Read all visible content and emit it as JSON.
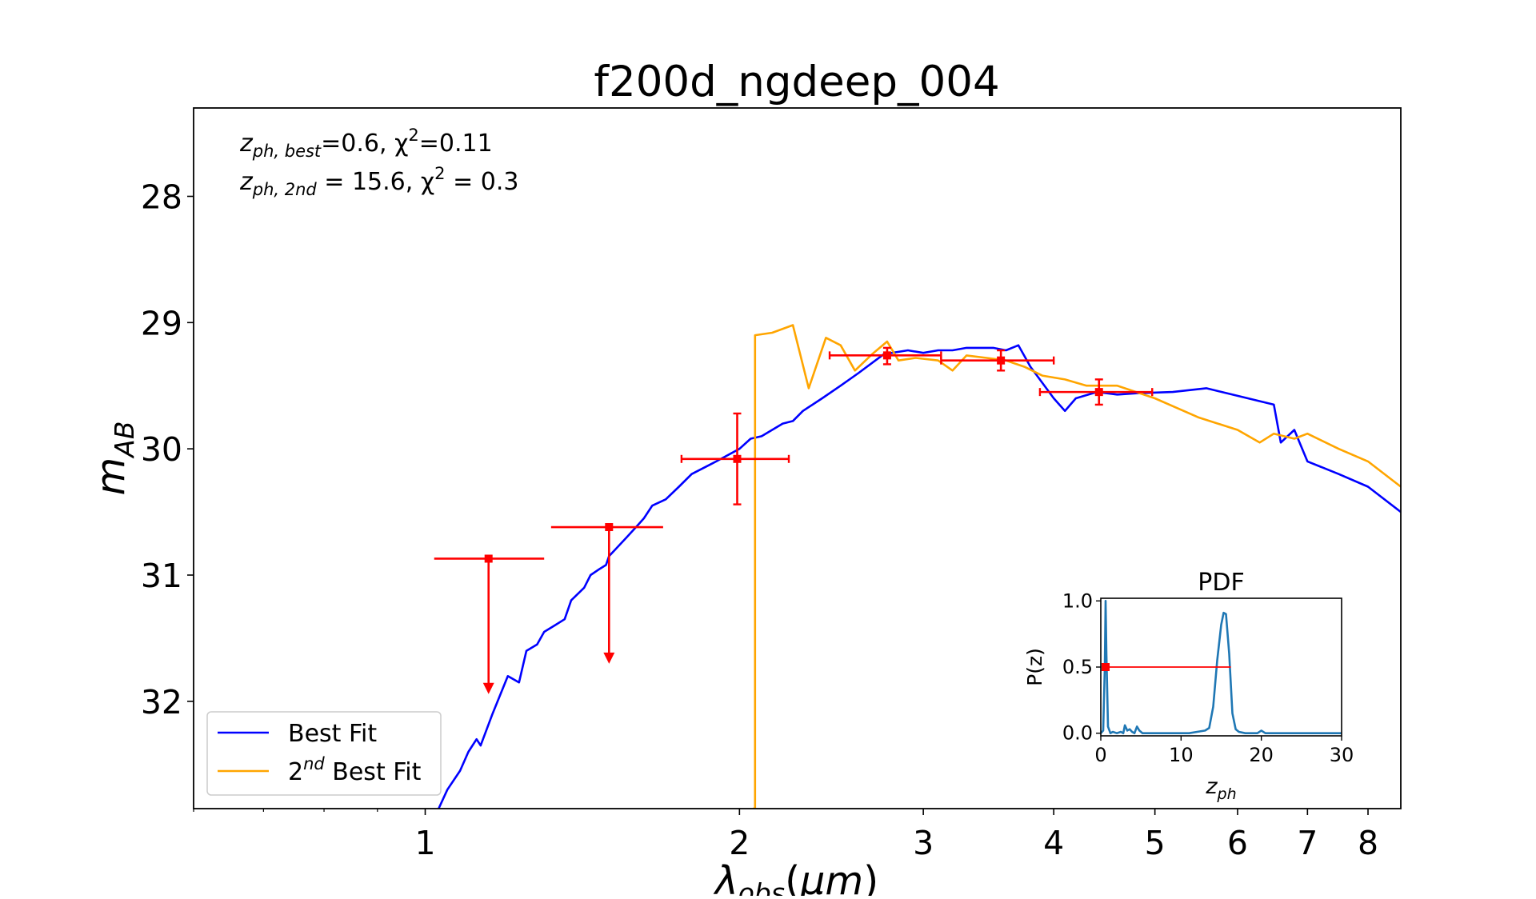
{
  "chart_data": {
    "type": "line",
    "title": "f200d_ngdeep_004",
    "xlabel": "λobs(μm)",
    "ylabel": "mAB",
    "xscale": "log",
    "xlim": [
      0.6,
      8.6
    ],
    "ylim": [
      32.85,
      27.3
    ],
    "xticks": [
      1,
      2,
      3,
      4,
      5,
      6,
      7,
      8
    ],
    "xtick_labels": [
      "1",
      "2",
      "3",
      "4",
      "5",
      "6",
      "7",
      "8"
    ],
    "yticks": [
      28,
      29,
      30,
      31,
      32
    ],
    "ytick_labels": [
      "28",
      "29",
      "30",
      "31",
      "32"
    ],
    "grid": false,
    "legend_position": "lower-left",
    "annotations": [
      {
        "base": "z",
        "sub": "ph, best",
        "text": "=0.6, χ",
        "sup": "2",
        "tail": "=0.11"
      },
      {
        "base": "z",
        "sub": "ph, 2nd",
        "text": " = 15.6, χ",
        "sup": "2",
        "tail": " = 0.3"
      }
    ],
    "series": [
      {
        "name": "Best Fit",
        "sup": "",
        "tail": "",
        "color": "#0000ff",
        "x": [
          1.03,
          1.05,
          1.08,
          1.1,
          1.12,
          1.13,
          1.16,
          1.2,
          1.23,
          1.25,
          1.28,
          1.3,
          1.33,
          1.36,
          1.38,
          1.42,
          1.44,
          1.47,
          1.49,
          1.5,
          1.52,
          1.56,
          1.6,
          1.62,
          1.65,
          1.7,
          1.75,
          1.8,
          1.9,
          2.0,
          2.05,
          2.1,
          2.2,
          2.25,
          2.3,
          2.4,
          2.5,
          2.6,
          2.75,
          2.9,
          3.0,
          3.1,
          3.2,
          3.3,
          3.5,
          3.6,
          3.7,
          3.8,
          4.0,
          4.1,
          4.2,
          4.4,
          4.6,
          4.8,
          5.2,
          5.6,
          6.0,
          6.5,
          6.6,
          6.8,
          7.0,
          7.5,
          8.0,
          8.6
        ],
        "y": [
          32.85,
          32.7,
          32.55,
          32.4,
          32.3,
          32.35,
          32.1,
          31.8,
          31.85,
          31.6,
          31.55,
          31.45,
          31.4,
          31.35,
          31.2,
          31.1,
          31.0,
          30.95,
          30.92,
          30.85,
          30.8,
          30.7,
          30.6,
          30.55,
          30.45,
          30.4,
          30.3,
          30.2,
          30.1,
          30.0,
          29.92,
          29.9,
          29.8,
          29.78,
          29.7,
          29.6,
          29.5,
          29.4,
          29.25,
          29.22,
          29.24,
          29.22,
          29.22,
          29.2,
          29.2,
          29.22,
          29.18,
          29.35,
          29.6,
          29.7,
          29.6,
          29.55,
          29.57,
          29.56,
          29.55,
          29.52,
          29.58,
          29.65,
          29.95,
          29.85,
          30.1,
          30.2,
          30.3,
          30.5
        ]
      },
      {
        "name": "2",
        "sup": "nd",
        "tail": " Best Fit",
        "color": "#ffa500",
        "x": [
          2.06,
          2.07,
          2.07,
          2.15,
          2.25,
          2.33,
          2.42,
          2.5,
          2.58,
          2.68,
          2.77,
          2.84,
          2.95,
          3.1,
          3.2,
          3.3,
          3.45,
          3.6,
          3.75,
          3.9,
          4.1,
          4.3,
          4.6,
          5.0,
          5.5,
          6.0,
          6.3,
          6.5,
          6.8,
          7.0,
          7.5,
          8.0,
          8.6
        ],
        "y": [
          32.85,
          32.85,
          29.1,
          29.08,
          29.02,
          29.52,
          29.12,
          29.18,
          29.38,
          29.25,
          29.15,
          29.3,
          29.28,
          29.3,
          29.38,
          29.26,
          29.28,
          29.3,
          29.35,
          29.42,
          29.45,
          29.5,
          29.5,
          29.6,
          29.75,
          29.85,
          29.95,
          29.88,
          29.92,
          29.88,
          30.0,
          30.1,
          30.3
        ]
      }
    ],
    "photometry": [
      {
        "x": 1.15,
        "xerr_lo": 1.02,
        "xerr_hi": 1.3,
        "y": 30.87,
        "upper_limit": true,
        "arrow_to": 31.93
      },
      {
        "x": 1.5,
        "xerr_lo": 1.32,
        "xerr_hi": 1.69,
        "y": 30.62,
        "upper_limit": true,
        "arrow_to": 31.69
      },
      {
        "x": 1.99,
        "xerr_lo": 1.76,
        "xerr_hi": 2.23,
        "y": 30.08,
        "yerr_lo": 29.72,
        "yerr_hi": 30.44,
        "upper_limit": false
      },
      {
        "x": 2.77,
        "xerr_lo": 2.44,
        "xerr_hi": 3.12,
        "y": 29.26,
        "yerr_lo": 29.2,
        "yerr_hi": 29.33,
        "upper_limit": false
      },
      {
        "x": 3.56,
        "xerr_lo": 3.12,
        "xerr_hi": 4.0,
        "y": 29.3,
        "yerr_lo": 29.22,
        "yerr_hi": 29.38,
        "upper_limit": false
      },
      {
        "x": 4.42,
        "xerr_lo": 3.88,
        "xerr_hi": 4.97,
        "y": 29.55,
        "yerr_lo": 29.45,
        "yerr_hi": 29.65,
        "upper_limit": false
      }
    ],
    "inset": {
      "title": "PDF",
      "type": "line",
      "xlabel": "zph",
      "ylabel": "P(z)",
      "xlim": [
        0,
        30
      ],
      "ylim": [
        -0.02,
        1.02
      ],
      "xticks": [
        0,
        10,
        20,
        30
      ],
      "xtick_labels": [
        "0",
        "10",
        "20",
        "30"
      ],
      "yticks": [
        0.0,
        0.5,
        1.0
      ],
      "ytick_labels": [
        "0.0",
        "0.5",
        "1.0"
      ],
      "color": "#1f77b4",
      "x": [
        0,
        0.3,
        0.5,
        0.6,
        0.7,
        0.9,
        1.2,
        1.5,
        2.0,
        2.5,
        2.8,
        3.0,
        3.3,
        3.6,
        3.9,
        4.2,
        4.5,
        4.8,
        5.2,
        6,
        8,
        10,
        11,
        12,
        13,
        13.5,
        14,
        14.5,
        15,
        15.3,
        15.6,
        16,
        16.4,
        16.8,
        17.2,
        18,
        19.5,
        20,
        20.5,
        22,
        25,
        30
      ],
      "y": [
        0,
        0.02,
        0.5,
        1.0,
        0.6,
        0.05,
        0.0,
        0.01,
        0.0,
        0.01,
        0.0,
        0.06,
        0.02,
        0.03,
        0.01,
        0.0,
        0.05,
        0.02,
        0.0,
        0.0,
        0.0,
        0.0,
        0.0,
        0.01,
        0.02,
        0.04,
        0.2,
        0.55,
        0.82,
        0.91,
        0.9,
        0.6,
        0.15,
        0.03,
        0.01,
        0.0,
        0.0,
        0.02,
        0.0,
        0.0,
        0.0,
        0.0
      ],
      "marker": {
        "x": 0.6,
        "y": 0.5,
        "x_lo": 0.3,
        "x_hi": 16.2
      }
    }
  }
}
